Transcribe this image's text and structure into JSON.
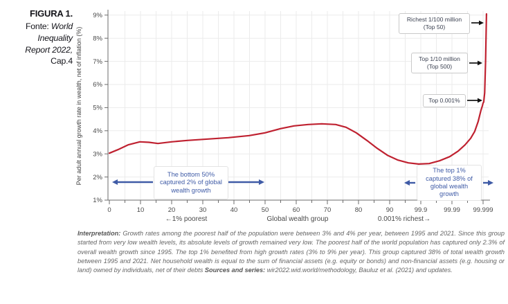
{
  "figure": {
    "title": "FIGURA 1.",
    "fonte_label": "Fonte: ",
    "source_line1": "World",
    "source_line2": "Inequality",
    "source_line3": "Report 2022,",
    "source_line4": "Cap.4"
  },
  "chart_data": {
    "type": "line",
    "title": "",
    "ylabel": "Per adult annual growth rate in wealth, net of inflation (%)",
    "xlabel_left": "←1% poorest",
    "xlabel_center": "Global wealth group",
    "xlabel_right": "0.001% richest→",
    "x_ticks": [
      "0",
      "10",
      "20",
      "30",
      "40",
      "50",
      "60",
      "70",
      "80",
      "90",
      "99.9",
      "99.99",
      "99.999"
    ],
    "x_scale_note": "percentiles, linear 0-90 then compressed top tail 99.9 / 99.99 / 99.999",
    "y_ticks": [
      "1%",
      "2%",
      "3%",
      "4%",
      "5%",
      "6%",
      "7%",
      "8%",
      "9%"
    ],
    "ylim": [
      1,
      9
    ],
    "grid": true,
    "legend": "none",
    "line_color": "#bf2130",
    "series": [
      {
        "name": "Per adult annual wealth growth rate 1995-2021",
        "curve_axis_units_vs_pct": [
          [
            0,
            3.03
          ],
          [
            0.27,
            3.18
          ],
          [
            0.6,
            3.39
          ],
          [
            0.98,
            3.52
          ],
          [
            1.27,
            3.5
          ],
          [
            1.56,
            3.45
          ],
          [
            2.0,
            3.52
          ],
          [
            2.5,
            3.58
          ],
          [
            3.16,
            3.64
          ],
          [
            3.82,
            3.7
          ],
          [
            4.49,
            3.79
          ],
          [
            5.0,
            3.91
          ],
          [
            5.49,
            4.09
          ],
          [
            5.93,
            4.21
          ],
          [
            6.38,
            4.27
          ],
          [
            6.82,
            4.3
          ],
          [
            7.27,
            4.27
          ],
          [
            7.6,
            4.15
          ],
          [
            7.93,
            3.91
          ],
          [
            8.27,
            3.58
          ],
          [
            8.6,
            3.24
          ],
          [
            8.93,
            2.94
          ],
          [
            9.27,
            2.73
          ],
          [
            9.6,
            2.61
          ],
          [
            9.93,
            2.56
          ],
          [
            10.27,
            2.58
          ],
          [
            10.6,
            2.7
          ],
          [
            10.93,
            2.88
          ],
          [
            11.2,
            3.12
          ],
          [
            11.42,
            3.39
          ],
          [
            11.6,
            3.67
          ],
          [
            11.73,
            3.97
          ],
          [
            11.84,
            4.39
          ],
          [
            11.93,
            4.88
          ],
          [
            11.98,
            5.09
          ],
          [
            12.0,
            5.2
          ],
          [
            12.02,
            5.24
          ],
          [
            12.05,
            5.64
          ],
          [
            12.08,
            7.0
          ],
          [
            12.11,
            9.05
          ]
        ]
      }
    ],
    "key_values": {
      "start_p0_pct": 3.0,
      "peak_around_p65_pct": 4.3,
      "minimum_near_p99.9_pct": 2.6,
      "top_endpoint_p99.999_pct": 9.0,
      "callout_arrow_targets_pct": {
        "richest_1_100_million": 8.7,
        "top_1_10_million": 6.9,
        "top_0_001pct": 5.3
      }
    }
  },
  "annotations": {
    "richest": {
      "line1": "Richest 1/100 million",
      "line2": "(Top 50)"
    },
    "top500": {
      "line1": "Top 1/10 million",
      "line2": "(Top 500)"
    },
    "top0001": {
      "label": "Top 0.001%"
    },
    "bottom50": {
      "text": "The bottom 50% captured 2% of global wealth growth"
    },
    "top1": {
      "text": "The top 1% captured 38% of global wealth growth"
    }
  },
  "interpretation": {
    "label": "Interpretation:",
    "body": " Growth rates among the poorest half of the population were between 3% and 4% per year, between 1995 and 2021. Since this group started from very low wealth levels, its absolute levels of growth remained very low. The poorest half of the world population has captured only 2.3% of overall wealth growth since 1995. The top 1% benefited from high growth rates (3% to 9% per year). This group captured 38% of total wealth growth between 1995 and 2021. Net household wealth is equal to the sum of financial assets (e.g. equity or bonds) and non-financial assets (e.g. housing or land) owned by individuals, net of their debts ",
    "sources_label": "Sources and series:",
    "sources_body": " wir2022.wid.world/methodology, Bauluz et al. (2021) and updates."
  }
}
